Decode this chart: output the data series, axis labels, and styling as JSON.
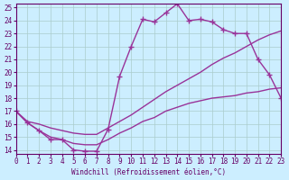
{
  "xlabel": "Windchill (Refroidissement éolien,°C)",
  "xlim": [
    0,
    23
  ],
  "ylim": [
    14,
    25
  ],
  "xticks": [
    0,
    1,
    2,
    3,
    4,
    5,
    6,
    7,
    8,
    9,
    10,
    11,
    12,
    13,
    14,
    15,
    16,
    17,
    18,
    19,
    20,
    21,
    22,
    23
  ],
  "yticks": [
    14,
    15,
    16,
    17,
    18,
    19,
    20,
    21,
    22,
    23,
    24,
    25
  ],
  "background_color": "#cceeff",
  "line_color": "#993399",
  "line1_x": [
    0,
    1,
    2,
    3,
    4,
    5,
    6,
    7,
    8,
    9,
    10,
    11,
    12,
    13,
    14,
    15,
    16,
    17,
    18,
    19,
    20,
    21,
    22,
    23
  ],
  "line1_y": [
    17.0,
    16.1,
    15.5,
    14.8,
    14.8,
    14.0,
    13.9,
    13.9,
    15.6,
    19.7,
    22.0,
    24.1,
    23.9,
    24.6,
    25.3,
    24.0,
    24.1,
    23.9,
    23.3,
    23.0,
    23.0,
    21.0,
    19.8,
    18.0
  ],
  "line2_x": [
    0,
    1,
    2,
    3,
    4,
    5,
    6,
    7,
    8,
    9,
    10,
    11,
    12,
    13,
    14,
    15,
    16,
    17,
    18,
    19,
    20,
    21,
    22,
    23
  ],
  "line2_y": [
    17.0,
    16.2,
    16.0,
    15.7,
    15.5,
    15.3,
    15.2,
    15.2,
    15.7,
    16.2,
    16.7,
    17.3,
    17.9,
    18.5,
    19.0,
    19.5,
    20.0,
    20.6,
    21.1,
    21.5,
    22.0,
    22.5,
    22.9,
    23.2
  ],
  "line3_x": [
    0,
    1,
    2,
    3,
    4,
    5,
    6,
    7,
    8,
    9,
    10,
    11,
    12,
    13,
    14,
    15,
    16,
    17,
    18,
    19,
    20,
    21,
    22,
    23
  ],
  "line3_y": [
    17.0,
    16.1,
    15.5,
    15.0,
    14.8,
    14.5,
    14.4,
    14.4,
    14.8,
    15.3,
    15.7,
    16.2,
    16.5,
    17.0,
    17.3,
    17.6,
    17.8,
    18.0,
    18.1,
    18.2,
    18.4,
    18.5,
    18.7,
    18.8
  ],
  "grid_color": "#aacccc",
  "font_color": "#660066",
  "font_family": "monospace"
}
